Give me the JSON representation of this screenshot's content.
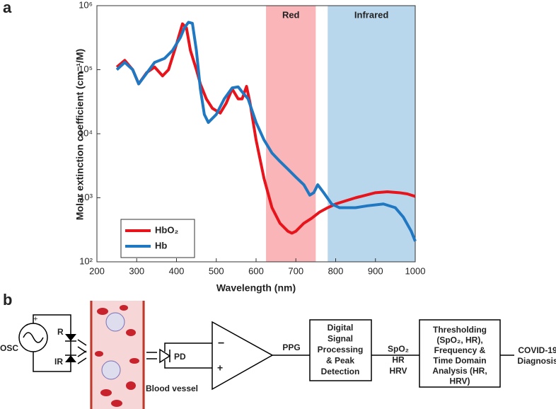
{
  "panel_labels": [
    "a",
    "b"
  ],
  "chart_data": {
    "type": "line",
    "xlabel": "Wavelength (nm)",
    "ylabel": "Molar extinction coefficient (cm⁻¹/M)",
    "xlim": [
      200,
      1000
    ],
    "xticks": [
      200,
      300,
      400,
      500,
      600,
      700,
      800,
      900,
      1000
    ],
    "ylim": [
      100,
      1000000
    ],
    "yticks": [
      {
        "value": 100,
        "label": "10²"
      },
      {
        "value": 1000,
        "label": "10³"
      },
      {
        "value": 10000,
        "label": "10⁴"
      },
      {
        "value": 100000,
        "label": "10⁵"
      },
      {
        "value": 1000000,
        "label": "10⁶"
      }
    ],
    "yscale": "log",
    "grid": false,
    "legend": "lower left",
    "spans": [
      {
        "label": "Red",
        "start": 625,
        "end": 750,
        "color": "#f9b5b7"
      },
      {
        "label": "Infrared",
        "start": 780,
        "end": 1000,
        "color": "#b9d7ec"
      }
    ],
    "series": [
      {
        "name": "HbO₂",
        "color": "#e8141c",
        "x": [
          250,
          270,
          290,
          305,
          325,
          345,
          365,
          380,
          400,
          415,
          425,
          435,
          450,
          460,
          475,
          490,
          510,
          525,
          540,
          555,
          565,
          576,
          585,
          600,
          620,
          640,
          660,
          680,
          690,
          700,
          720,
          740,
          760,
          780,
          800,
          850,
          900,
          930,
          960,
          980,
          1000
        ],
        "values": [
          110000,
          140000,
          100000,
          60000,
          90000,
          110000,
          80000,
          100000,
          250000,
          520000,
          450000,
          200000,
          100000,
          60000,
          35000,
          25000,
          21000,
          30000,
          50000,
          35000,
          35000,
          55000,
          30000,
          8000,
          2000,
          700,
          400,
          300,
          280,
          300,
          400,
          480,
          600,
          700,
          800,
          1000,
          1200,
          1240,
          1200,
          1150,
          1050
        ]
      },
      {
        "name": "Hb",
        "color": "#1f78c1",
        "x": [
          250,
          270,
          290,
          305,
          320,
          345,
          370,
          390,
          410,
          420,
          430,
          440,
          450,
          460,
          470,
          480,
          500,
          520,
          540,
          555,
          565,
          580,
          600,
          620,
          640,
          660,
          680,
          700,
          720,
          735,
          745,
          755,
          770,
          790,
          810,
          850,
          880,
          920,
          950,
          970,
          990,
          1000
        ],
        "values": [
          100000,
          130000,
          100000,
          60000,
          80000,
          130000,
          150000,
          200000,
          320000,
          450000,
          550000,
          530000,
          200000,
          50000,
          20000,
          15000,
          20000,
          35000,
          52000,
          54000,
          45000,
          35000,
          15000,
          8000,
          5000,
          3700,
          2800,
          2100,
          1600,
          1100,
          1200,
          1600,
          1200,
          800,
          700,
          700,
          750,
          800,
          700,
          500,
          300,
          210
        ]
      }
    ]
  },
  "diagram": {
    "osc": "OSC",
    "plus_source": "+",
    "led_red": "R",
    "led_ir": "IR",
    "pd": "PD",
    "vessel": "Blood vessel",
    "amp_minus": "−",
    "amp_plus": "+",
    "ppg": "PPG",
    "box1": [
      "Digital",
      "Signal",
      "Processing",
      "& Peak",
      "Detection"
    ],
    "outputs": [
      "SpO₂",
      "HR",
      "HRV"
    ],
    "box2": [
      "Thresholding",
      "(SpO₂, HR),",
      "Frequency &",
      "Time Domain",
      "Analysis (HR,",
      "HRV)"
    ],
    "result": [
      "COVID-19",
      "Diagnosis"
    ]
  }
}
